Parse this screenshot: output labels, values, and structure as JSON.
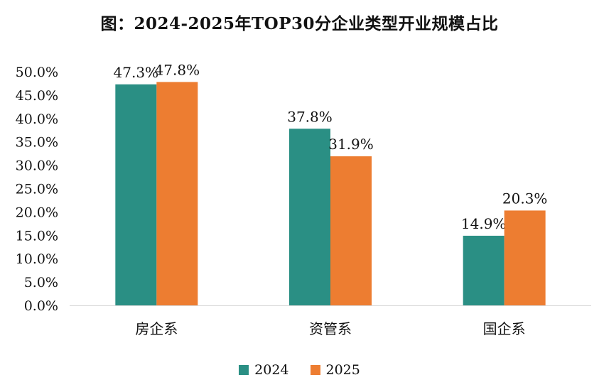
{
  "chart_data": {
    "type": "bar",
    "title": "图：2024-2025年TOP30分企业类型开业规模占比",
    "xlabel": "",
    "ylabel": "",
    "categories": [
      "房企系",
      "资管系",
      "国企系"
    ],
    "series": [
      {
        "name": "2024",
        "values": [
          47.3,
          37.8,
          14.9
        ],
        "labels": [
          "47.3%",
          "37.8%",
          "14.9%"
        ],
        "color": "#2a8f84"
      },
      {
        "name": "2025",
        "values": [
          47.8,
          31.9,
          20.3
        ],
        "labels": [
          "47.8%",
          "31.9%",
          "20.3%"
        ],
        "color": "#ed7d31"
      }
    ],
    "ylim": [
      0,
      50
    ],
    "yticks": [
      "0.0%",
      "5.0%",
      "10.0%",
      "15.0%",
      "20.0%",
      "25.0%",
      "30.0%",
      "35.0%",
      "40.0%",
      "45.0%",
      "50.0%"
    ],
    "grid": false,
    "legend_position": "bottom"
  }
}
